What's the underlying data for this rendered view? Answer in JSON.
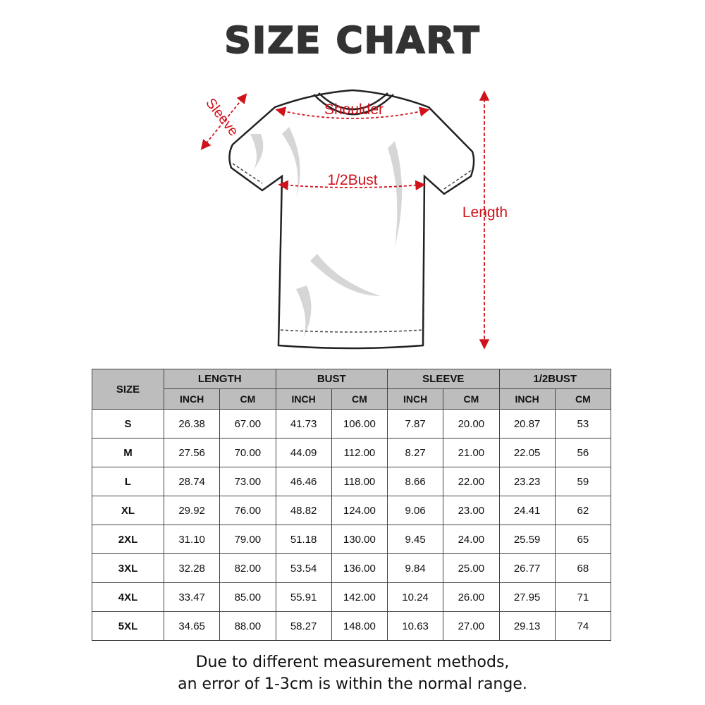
{
  "title": "SIZE CHART",
  "diagram": {
    "labels": {
      "shoulder": "Shoulder",
      "sleeve": "Sleeve",
      "half_bust": "1/2Bust",
      "length": "Length"
    },
    "arrow_color": "#d0121b"
  },
  "table": {
    "size_header": "SIZE",
    "groups": [
      "LENGTH",
      "BUST",
      "SLEEVE",
      "1/2BUST"
    ],
    "units": [
      "INCH",
      "CM",
      "INCH",
      "CM",
      "INCH",
      "CM",
      "INCH",
      "CM"
    ],
    "rows": [
      [
        "S",
        "26.38",
        "67.00",
        "41.73",
        "106.00",
        "7.87",
        "20.00",
        "20.87",
        "53"
      ],
      [
        "M",
        "27.56",
        "70.00",
        "44.09",
        "112.00",
        "8.27",
        "21.00",
        "22.05",
        "56"
      ],
      [
        "L",
        "28.74",
        "73.00",
        "46.46",
        "118.00",
        "8.66",
        "22.00",
        "23.23",
        "59"
      ],
      [
        "XL",
        "29.92",
        "76.00",
        "48.82",
        "124.00",
        "9.06",
        "23.00",
        "24.41",
        "62"
      ],
      [
        "2XL",
        "31.10",
        "79.00",
        "51.18",
        "130.00",
        "9.45",
        "24.00",
        "25.59",
        "65"
      ],
      [
        "3XL",
        "32.28",
        "82.00",
        "53.54",
        "136.00",
        "9.84",
        "25.00",
        "26.77",
        "68"
      ],
      [
        "4XL",
        "33.47",
        "85.00",
        "55.91",
        "142.00",
        "10.24",
        "26.00",
        "27.95",
        "71"
      ],
      [
        "5XL",
        "34.65",
        "88.00",
        "58.27",
        "148.00",
        "10.63",
        "27.00",
        "29.13",
        "74"
      ]
    ],
    "header_bg": "#bdbdbd"
  },
  "note": {
    "line1": "Due to different measurement methods,",
    "line2": "an error of 1-3cm is within the normal range."
  }
}
